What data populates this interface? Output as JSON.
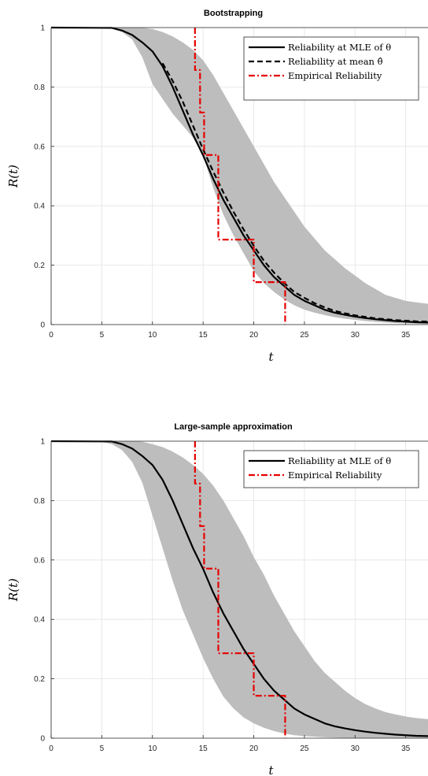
{
  "chart_data": [
    {
      "type": "line",
      "title": "Bootstrapping",
      "xlabel": "t",
      "ylabel": "R(t)",
      "xlim": [
        0,
        37.2
      ],
      "ylim": [
        0,
        1
      ],
      "xticks": [
        0,
        5,
        10,
        15,
        20,
        25,
        30,
        35
      ],
      "yticks": [
        0,
        0.2,
        0.4,
        0.6,
        0.8,
        1
      ],
      "grid": true,
      "legend_position": "top-right",
      "legend": [
        "Reliability at MLE of θ",
        "Reliability at mean θ̂",
        "Empirical Reliability"
      ],
      "band": {
        "x": [
          0,
          6,
          7,
          8,
          9,
          10,
          11,
          12,
          13,
          14,
          15,
          16,
          17,
          18,
          19,
          20,
          21,
          22,
          23,
          24,
          25,
          26,
          27,
          28,
          29,
          30,
          31,
          32,
          33,
          34,
          35,
          36,
          37.2
        ],
        "lower": [
          1,
          0.998,
          0.985,
          0.96,
          0.9,
          0.81,
          0.76,
          0.71,
          0.67,
          0.63,
          0.57,
          0.46,
          0.37,
          0.3,
          0.24,
          0.18,
          0.14,
          0.11,
          0.085,
          0.065,
          0.05,
          0.04,
          0.032,
          0.025,
          0.02,
          0.016,
          0.012,
          0.009,
          0.007,
          0.005,
          0.004,
          0.003,
          0.002
        ],
        "upper": [
          1,
          1,
          1,
          1,
          1,
          0.995,
          0.985,
          0.97,
          0.95,
          0.925,
          0.89,
          0.84,
          0.78,
          0.72,
          0.66,
          0.6,
          0.54,
          0.48,
          0.43,
          0.38,
          0.33,
          0.29,
          0.25,
          0.22,
          0.19,
          0.165,
          0.14,
          0.12,
          0.1,
          0.09,
          0.08,
          0.075,
          0.07
        ]
      },
      "series": [
        {
          "name": "Reliability at MLE of θ",
          "color": "#000000",
          "style": "solid",
          "x": [
            0,
            6,
            7,
            8,
            9,
            10,
            11,
            12,
            13,
            14,
            15,
            16,
            17,
            18,
            19,
            20,
            21,
            22,
            23,
            24,
            25,
            26,
            27,
            28,
            29,
            30,
            31,
            32,
            33,
            34,
            35,
            36,
            37.2
          ],
          "y": [
            1,
            0.999,
            0.99,
            0.975,
            0.95,
            0.92,
            0.87,
            0.8,
            0.72,
            0.64,
            0.57,
            0.49,
            0.42,
            0.36,
            0.3,
            0.25,
            0.2,
            0.16,
            0.13,
            0.1,
            0.08,
            0.065,
            0.05,
            0.04,
            0.033,
            0.027,
            0.022,
            0.018,
            0.015,
            0.012,
            0.01,
            0.008,
            0.007
          ]
        },
        {
          "name": "Reliability at mean θ̂",
          "color": "#000000",
          "style": "dashed",
          "x": [
            11,
            12,
            13,
            14,
            15,
            16,
            17,
            18,
            19,
            20,
            21,
            22,
            23,
            24,
            25,
            26,
            27,
            28,
            29,
            30,
            31,
            32,
            33,
            34,
            35,
            36,
            37.2
          ],
          "y": [
            0.88,
            0.82,
            0.75,
            0.67,
            0.59,
            0.515,
            0.445,
            0.38,
            0.32,
            0.265,
            0.215,
            0.175,
            0.14,
            0.11,
            0.09,
            0.072,
            0.058,
            0.046,
            0.038,
            0.031,
            0.026,
            0.021,
            0.018,
            0.015,
            0.013,
            0.011,
            0.01
          ]
        },
        {
          "name": "Empirical Reliability",
          "color": "#e60000",
          "style": "dash-dot-step",
          "x": [
            14.2,
            14.2,
            14.7,
            14.7,
            15.1,
            15.1,
            16.5,
            16.5,
            20,
            20,
            23.1,
            23.1
          ],
          "y": [
            1,
            0.857,
            0.857,
            0.714,
            0.714,
            0.571,
            0.571,
            0.286,
            0.286,
            0.143,
            0.143,
            0
          ]
        }
      ]
    },
    {
      "type": "line",
      "title": "Large-sample approximation",
      "xlabel": "t",
      "ylabel": "R(t)",
      "xlim": [
        0,
        37.2
      ],
      "ylim": [
        0,
        1
      ],
      "xticks": [
        0,
        5,
        10,
        15,
        20,
        25,
        30,
        35
      ],
      "yticks": [
        0,
        0.2,
        0.4,
        0.6,
        0.8,
        1
      ],
      "grid": true,
      "legend_position": "top-right",
      "legend": [
        "Reliability at MLE of θ",
        "Empirical Reliability"
      ],
      "band": {
        "x": [
          0,
          5,
          6,
          7,
          8,
          9,
          10,
          11,
          12,
          13,
          14,
          15,
          16,
          17,
          18,
          19,
          20,
          21,
          22,
          23,
          24,
          25,
          26,
          27,
          28,
          29,
          30,
          31,
          32,
          33,
          34,
          35,
          36,
          37.2
        ],
        "lower": [
          1,
          0.998,
          0.99,
          0.97,
          0.93,
          0.86,
          0.75,
          0.64,
          0.53,
          0.43,
          0.35,
          0.27,
          0.2,
          0.14,
          0.1,
          0.07,
          0.05,
          0.035,
          0.024,
          0.016,
          0.01,
          0.007,
          0.005,
          0.003,
          0.002,
          0.001,
          0.001,
          0,
          0,
          0,
          0,
          0,
          0,
          0
        ],
        "upper": [
          1,
          1,
          1,
          1,
          1,
          0.998,
          0.99,
          0.98,
          0.965,
          0.945,
          0.92,
          0.89,
          0.85,
          0.8,
          0.74,
          0.68,
          0.61,
          0.55,
          0.48,
          0.42,
          0.36,
          0.31,
          0.26,
          0.22,
          0.19,
          0.16,
          0.135,
          0.115,
          0.1,
          0.088,
          0.08,
          0.073,
          0.068,
          0.064
        ]
      },
      "series": [
        {
          "name": "Reliability at MLE of θ",
          "color": "#000000",
          "style": "solid",
          "x": [
            0,
            6,
            7,
            8,
            9,
            10,
            11,
            12,
            13,
            14,
            15,
            16,
            17,
            18,
            19,
            20,
            21,
            22,
            23,
            24,
            25,
            26,
            27,
            28,
            29,
            30,
            31,
            32,
            33,
            34,
            35,
            36,
            37.2
          ],
          "y": [
            1,
            0.999,
            0.99,
            0.975,
            0.95,
            0.92,
            0.87,
            0.8,
            0.72,
            0.64,
            0.57,
            0.49,
            0.42,
            0.36,
            0.3,
            0.25,
            0.2,
            0.16,
            0.13,
            0.1,
            0.08,
            0.065,
            0.05,
            0.04,
            0.033,
            0.027,
            0.022,
            0.018,
            0.015,
            0.012,
            0.01,
            0.008,
            0.007
          ]
        },
        {
          "name": "Empirical Reliability",
          "color": "#e60000",
          "style": "dash-dot-step",
          "x": [
            14.2,
            14.2,
            14.7,
            14.7,
            15.1,
            15.1,
            16.5,
            16.5,
            20,
            20,
            23.1,
            23.1
          ],
          "y": [
            1,
            0.857,
            0.857,
            0.714,
            0.714,
            0.571,
            0.571,
            0.286,
            0.286,
            0.143,
            0.143,
            0
          ]
        }
      ]
    }
  ]
}
